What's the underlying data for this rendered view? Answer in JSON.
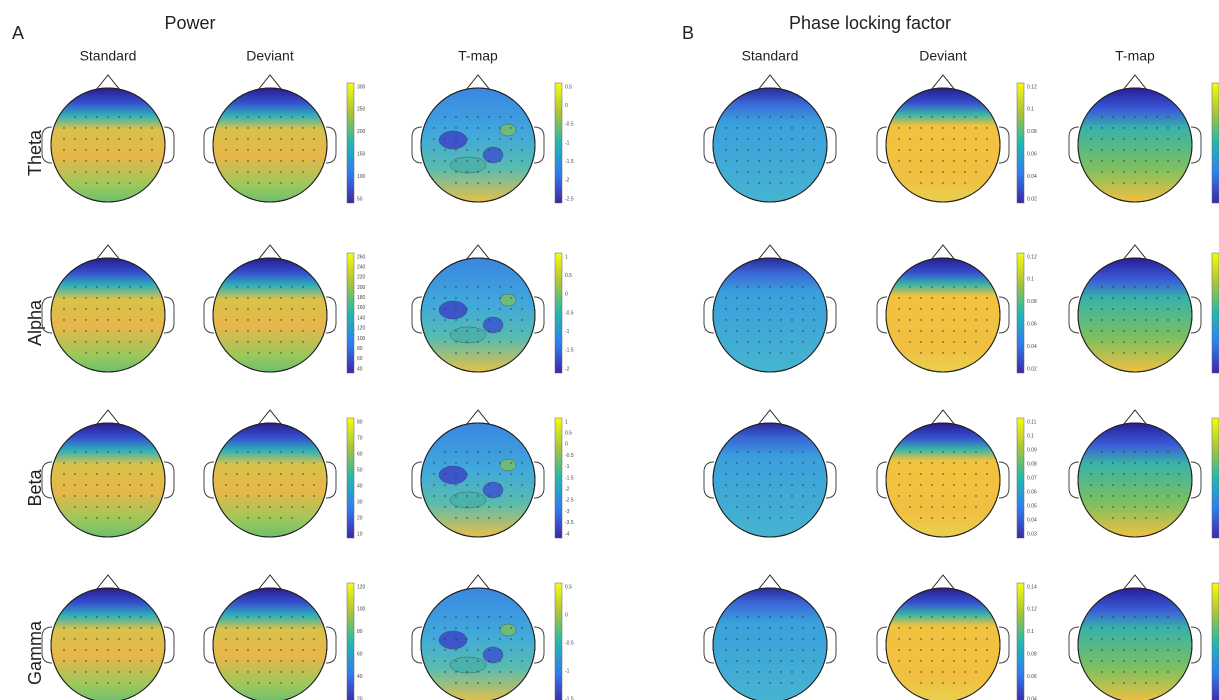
{
  "columns": [
    "Standard",
    "Deviant",
    "T-map"
  ],
  "rows": [
    "Theta",
    "Alpha",
    "Beta",
    "Gamma"
  ],
  "panels": [
    {
      "letter": "A",
      "title": "Power",
      "colorbars": [
        [
          [
            300,
            250,
            200,
            150,
            100,
            50
          ],
          [
            0.5,
            0,
            -0.5,
            -1,
            -1.5,
            -2,
            -2.5
          ]
        ],
        [
          [
            260,
            240,
            220,
            200,
            180,
            160,
            140,
            120,
            100,
            80,
            60,
            40
          ],
          [
            1,
            0.5,
            0,
            -0.5,
            -1,
            -1.5,
            -2
          ]
        ],
        [
          [
            80,
            70,
            60,
            50,
            40,
            30,
            20,
            10
          ],
          [
            1,
            0.5,
            0,
            -0.5,
            -1,
            -1.5,
            -2,
            -2.5,
            -3,
            -3.5,
            -4
          ]
        ],
        [
          [
            120,
            100,
            80,
            60,
            40,
            20
          ],
          [
            0.5,
            0,
            -0.5,
            -1,
            -1.5
          ]
        ]
      ]
    },
    {
      "letter": "B",
      "title": "Phase locking factor",
      "colorbars": [
        [
          [
            0.12,
            0.1,
            0.08,
            0.06,
            0.04,
            0.02
          ],
          []
        ],
        [
          [
            0.12,
            0.1,
            0.08,
            0.06,
            0.04,
            0.02
          ],
          []
        ],
        [
          [
            0.11,
            0.1,
            0.09,
            0.08,
            0.07,
            0.06,
            0.05,
            0.04,
            0.03
          ],
          []
        ],
        [
          [
            0.14,
            0.12,
            0.1,
            0.08,
            0.06,
            0.04
          ],
          []
        ]
      ]
    }
  ]
}
